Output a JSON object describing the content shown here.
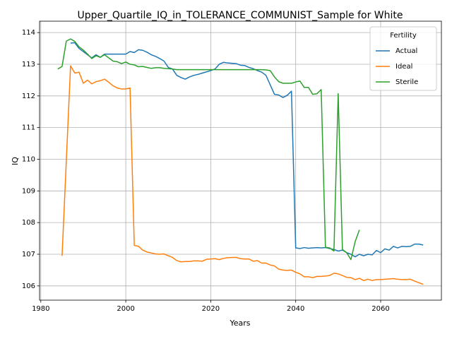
{
  "chart_data": {
    "type": "line",
    "title": "Upper_Quartile_IQ_in_TOLERANCE_COMMUNIST_Sample for White",
    "x_label": "Years",
    "y_label": "IQ",
    "x": [
      1984,
      1985,
      1986,
      1987,
      1988,
      1989,
      1990,
      1991,
      1992,
      1993,
      1994,
      1995,
      1996,
      1997,
      1998,
      1999,
      2000,
      2001,
      2002,
      2003,
      2004,
      2005,
      2006,
      2007,
      2008,
      2009,
      2010,
      2011,
      2012,
      2013,
      2014,
      2015,
      2016,
      2017,
      2018,
      2019,
      2020,
      2021,
      2022,
      2023,
      2024,
      2025,
      2026,
      2027,
      2028,
      2029,
      2030,
      2031,
      2032,
      2033,
      2034,
      2035,
      2036,
      2037,
      2038,
      2039,
      2040,
      2041,
      2042,
      2043,
      2044,
      2045,
      2046,
      2047,
      2048,
      2049,
      2050,
      2051,
      2052,
      2053,
      2054,
      2055,
      2056,
      2057,
      2058,
      2059,
      2060,
      2061,
      2062,
      2063,
      2064,
      2065,
      2066,
      2067,
      2068,
      2069,
      2070
    ],
    "series": [
      {
        "name": "Actual",
        "color": "#1f77b4",
        "values": [
          null,
          null,
          null,
          113.67,
          113.68,
          113.5,
          113.4,
          113.3,
          113.2,
          113.3,
          113.22,
          113.32,
          113.32,
          113.32,
          113.32,
          113.32,
          113.32,
          113.4,
          113.37,
          113.46,
          113.44,
          113.38,
          113.3,
          113.25,
          113.18,
          113.1,
          112.9,
          112.85,
          112.65,
          112.58,
          112.53,
          112.6,
          112.65,
          112.68,
          112.72,
          112.76,
          112.8,
          112.85,
          113.0,
          113.06,
          113.04,
          113.03,
          113.02,
          112.97,
          112.96,
          112.9,
          112.86,
          112.8,
          112.75,
          112.65,
          112.35,
          112.05,
          112.03,
          111.95,
          112.02,
          112.15,
          107.2,
          107.18,
          107.21,
          107.19,
          107.2,
          107.21,
          107.2,
          107.21,
          107.18,
          107.15,
          107.1,
          107.13,
          107.05,
          107.0,
          106.92,
          107.0,
          106.95,
          107.0,
          106.98,
          107.12,
          107.05,
          107.17,
          107.13,
          107.25,
          107.2,
          107.25,
          107.24,
          107.25,
          107.32,
          107.32,
          107.29
        ]
      },
      {
        "name": "Ideal",
        "color": "#ff7f0e",
        "values": [
          null,
          106.95,
          109.95,
          112.95,
          112.72,
          112.75,
          112.4,
          112.5,
          112.38,
          112.45,
          112.48,
          112.53,
          112.43,
          112.32,
          112.25,
          112.22,
          112.22,
          112.25,
          107.28,
          107.25,
          107.13,
          107.07,
          107.04,
          107.01,
          107.0,
          107.01,
          106.95,
          106.9,
          106.8,
          106.76,
          106.77,
          106.77,
          106.79,
          106.79,
          106.78,
          106.84,
          106.85,
          106.86,
          106.83,
          106.87,
          106.89,
          106.9,
          106.9,
          106.86,
          106.85,
          106.85,
          106.78,
          106.8,
          106.72,
          106.72,
          106.66,
          106.63,
          106.53,
          106.5,
          106.49,
          106.5,
          106.43,
          106.38,
          106.29,
          106.29,
          106.26,
          106.3,
          106.3,
          106.31,
          106.33,
          106.4,
          106.38,
          106.33,
          106.27,
          106.26,
          106.2,
          106.24,
          106.17,
          106.21,
          106.17,
          106.2,
          106.2,
          106.21,
          106.22,
          106.23,
          106.21,
          106.2,
          106.2,
          106.21,
          106.15,
          106.1,
          106.05
        ]
      },
      {
        "name": "Sterile",
        "color": "#2ca02c",
        "values": [
          112.85,
          112.93,
          113.73,
          113.8,
          113.72,
          113.55,
          113.45,
          113.32,
          113.18,
          113.27,
          113.22,
          113.3,
          113.2,
          113.1,
          113.08,
          113.02,
          113.07,
          113.0,
          112.98,
          112.92,
          112.93,
          112.9,
          112.87,
          112.89,
          112.89,
          112.87,
          112.86,
          112.85,
          112.83,
          112.83,
          112.83,
          112.83,
          112.83,
          112.83,
          112.83,
          112.83,
          112.83,
          112.83,
          112.83,
          112.83,
          112.83,
          112.83,
          112.83,
          112.83,
          112.83,
          112.83,
          112.83,
          112.83,
          112.83,
          112.82,
          112.8,
          112.6,
          112.45,
          112.4,
          112.4,
          112.4,
          112.44,
          112.47,
          112.27,
          112.27,
          112.05,
          112.07,
          112.2,
          107.22,
          107.2,
          107.1,
          112.07,
          107.15,
          107.05,
          106.83,
          107.4,
          107.77,
          null,
          null,
          null,
          null,
          null,
          null,
          null,
          null,
          null,
          null,
          null,
          null,
          null,
          null,
          null
        ]
      }
    ],
    "xlim": [
      1979.7,
      2074.3
    ],
    "ylim": [
      105.55,
      114.36
    ],
    "xticks": [
      1980,
      2000,
      2020,
      2040,
      2060
    ],
    "yticks": [
      106,
      107,
      108,
      109,
      110,
      111,
      112,
      113,
      114
    ],
    "grid": true,
    "legend": {
      "title": "Fertility",
      "position": "upper right"
    }
  }
}
